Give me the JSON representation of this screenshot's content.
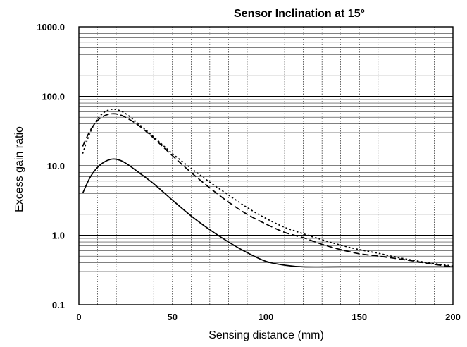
{
  "chart_data": {
    "type": "line",
    "title": "Sensor Inclination at 15°",
    "xlabel": "Sensing distance (mm)",
    "ylabel": "Excess gain ratio",
    "xlim": [
      0,
      200
    ],
    "ylim": [
      0.1,
      1000
    ],
    "yscale": "log",
    "grid": true,
    "x_ticks": [
      0,
      50,
      100,
      150,
      200
    ],
    "x_tick_labels": [
      "0",
      "50",
      "100",
      "150",
      "200"
    ],
    "y_ticks": [
      0.1,
      1,
      10,
      100,
      1000
    ],
    "y_tick_labels": [
      "0.1",
      "1.0",
      "10.0",
      "100.0",
      "1000.0"
    ],
    "series": [
      {
        "style": "solid",
        "x": [
          2,
          6,
          10,
          14,
          18,
          22,
          26,
          32,
          40,
          50,
          60,
          70,
          80,
          90,
          100,
          110,
          120,
          140,
          160,
          180,
          200
        ],
        "y": [
          4.0,
          6.8,
          9.5,
          11.5,
          12.5,
          12.0,
          10.5,
          8.0,
          5.5,
          3.2,
          1.9,
          1.2,
          0.8,
          0.56,
          0.42,
          0.37,
          0.35,
          0.35,
          0.35,
          0.35,
          0.35
        ]
      },
      {
        "style": "dashed",
        "x": [
          2,
          6,
          10,
          14,
          18,
          22,
          26,
          32,
          40,
          50,
          60,
          70,
          80,
          90,
          100,
          110,
          120,
          130,
          140,
          150,
          160,
          170,
          180,
          190,
          200
        ],
        "y": [
          19,
          32,
          45,
          53,
          56,
          54,
          48,
          38,
          25,
          14,
          8.0,
          4.8,
          3.0,
          2.0,
          1.45,
          1.1,
          0.92,
          0.74,
          0.62,
          0.54,
          0.5,
          0.46,
          0.42,
          0.38,
          0.35
        ]
      },
      {
        "style": "dotted",
        "x": [
          2,
          6,
          10,
          14,
          18,
          22,
          26,
          32,
          40,
          50,
          60,
          70,
          80,
          90,
          100,
          110,
          120,
          130,
          140,
          150,
          160,
          170,
          180,
          190,
          200
        ],
        "y": [
          15,
          30,
          47,
          60,
          65,
          62,
          54,
          40,
          26,
          15,
          9.2,
          5.8,
          3.8,
          2.5,
          1.75,
          1.3,
          1.05,
          0.86,
          0.72,
          0.62,
          0.55,
          0.48,
          0.43,
          0.39,
          0.36
        ]
      }
    ]
  }
}
